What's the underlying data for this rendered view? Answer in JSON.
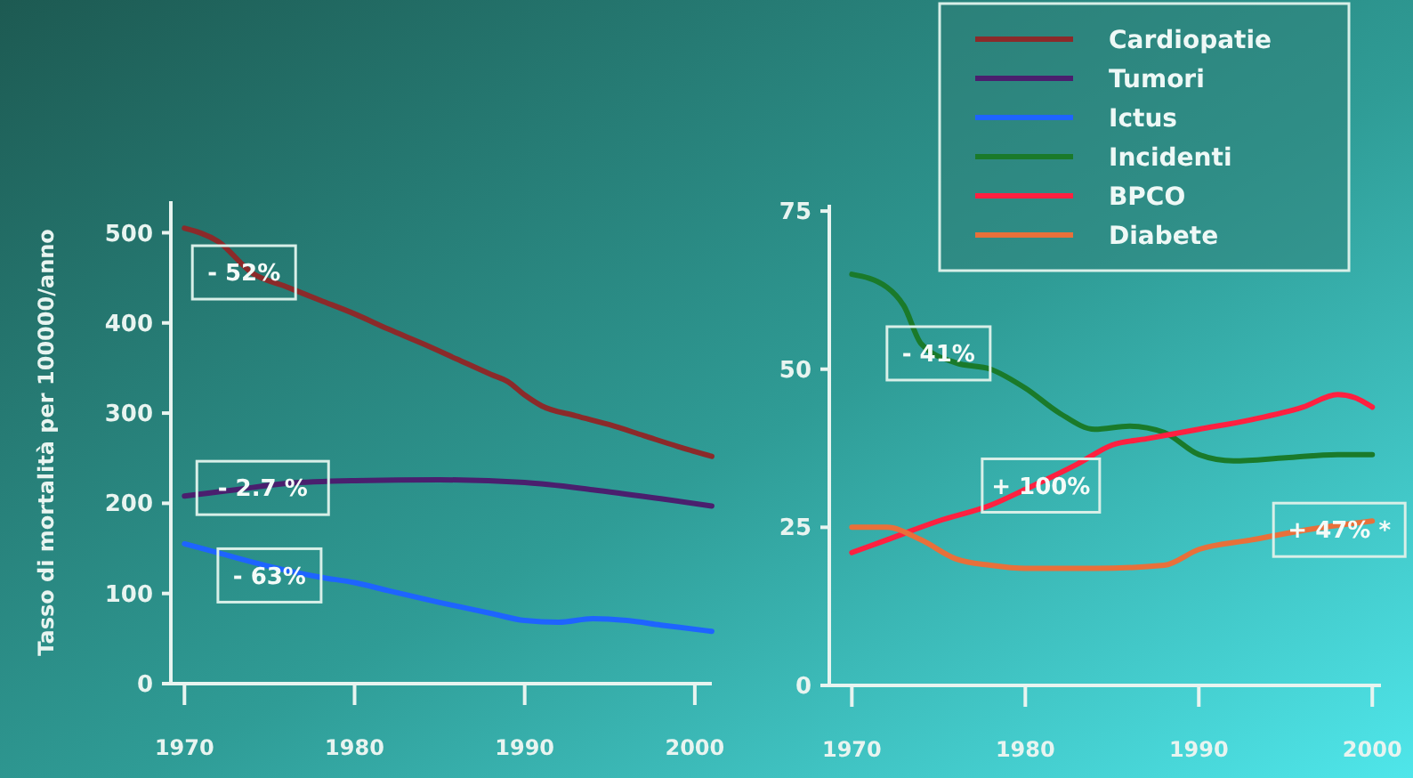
{
  "chart_data": [
    {
      "type": "line",
      "ylabel": "Tasso di mortalità per 100000/anno",
      "xlim": [
        1969.2,
        2001
      ],
      "xticks": [
        1970,
        1980,
        1990,
        2000
      ],
      "ylim": [
        0,
        535
      ],
      "yticks": [
        0,
        100,
        200,
        300,
        400,
        500
      ],
      "legend": "top right",
      "grid": false,
      "series": [
        {
          "name": "Cardiopatie",
          "color": "#8b2a2a",
          "x": [
            1970,
            1972,
            1974,
            1976,
            1978,
            1980,
            1982,
            1984,
            1986,
            1988,
            1989,
            1990,
            1991,
            1993,
            1995,
            1997,
            1999,
            2001
          ],
          "values": [
            505,
            490,
            455,
            440,
            425,
            410,
            393,
            377,
            360,
            343,
            335,
            320,
            308,
            297,
            287,
            275,
            263,
            252
          ]
        },
        {
          "name": "Tumori",
          "color": "#4a1f6e",
          "x": [
            1970,
            1973,
            1976,
            1980,
            1985,
            1990,
            1994,
            1998,
            2001
          ],
          "values": [
            208,
            215,
            222,
            225,
            226,
            223,
            215,
            205,
            197
          ]
        },
        {
          "name": "Ictus",
          "color": "#1e64ff",
          "x": [
            1970,
            1972,
            1975,
            1978,
            1980,
            1982,
            1985,
            1988,
            1990,
            1992,
            1994,
            1996,
            1998,
            2001
          ],
          "values": [
            155,
            145,
            130,
            118,
            112,
            103,
            90,
            78,
            70,
            68,
            72,
            70,
            65,
            58
          ]
        }
      ],
      "annotations": [
        {
          "text": "- 52%",
          "x": 1973.5,
          "y": 456
        },
        {
          "text": "- 2.7 %",
          "x": 1974.6,
          "y": 217
        },
        {
          "text": "- 63%",
          "x": 1975,
          "y": 120
        }
      ]
    },
    {
      "type": "line",
      "xlim": [
        1968.7,
        2000.5
      ],
      "xticks": [
        1970,
        1980,
        1990,
        2000
      ],
      "ylim": [
        0,
        76
      ],
      "yticks": [
        0,
        25,
        50,
        75
      ],
      "legend": "top right",
      "grid": false,
      "series": [
        {
          "name": "Incidenti",
          "color": "#1a7a2a",
          "x": [
            1970,
            1972,
            1973,
            1974,
            1976,
            1978,
            1980,
            1982,
            1984,
            1986,
            1988,
            1990,
            1992,
            1995,
            1998,
            2000
          ],
          "values": [
            65,
            63,
            60,
            54,
            51,
            50,
            47,
            43,
            40.5,
            41,
            40,
            36.5,
            35.5,
            36,
            36.5,
            36.5
          ]
        },
        {
          "name": "BPCO",
          "color": "#ff2040",
          "x": [
            1970,
            1972,
            1975,
            1978,
            1980,
            1983,
            1985,
            1987,
            1990,
            1993,
            1996,
            1998,
            1999,
            2000
          ],
          "values": [
            21,
            23,
            26,
            28.5,
            31,
            35,
            38,
            39,
            40.5,
            42,
            44,
            46,
            45.5,
            44
          ]
        },
        {
          "name": "Diabete",
          "color": "#e8703a",
          "x": [
            1970,
            1972,
            1974,
            1976,
            1978,
            1980,
            1984,
            1988,
            1990,
            1993,
            1996,
            2000
          ],
          "values": [
            25,
            25,
            23,
            20,
            19,
            18.5,
            18.5,
            19,
            21.5,
            23,
            24.5,
            26
          ]
        }
      ],
      "annotations": [
        {
          "text": "- 41%",
          "x": 1975,
          "y": 52.5
        },
        {
          "text": "+ 100%",
          "x": 1980.9,
          "y": 31.6
        },
        {
          "text": "+ 47% *",
          "x": 1998.1,
          "y": 24.6
        }
      ]
    }
  ]
}
